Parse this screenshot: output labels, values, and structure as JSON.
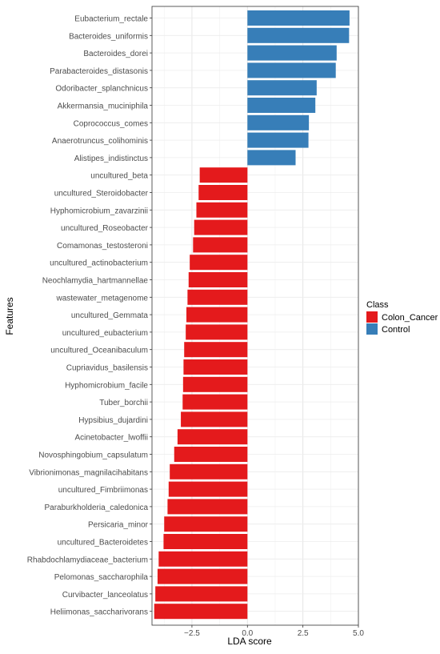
{
  "chart_data": {
    "type": "bar",
    "orientation": "horizontal",
    "xlabel": "LDA score",
    "ylabel": "Features",
    "xlim": [
      -4.3,
      5.0
    ],
    "xticks": [
      -2.5,
      0.0,
      2.5,
      5.0
    ],
    "xtick_labels": [
      "−2.5",
      "0.0",
      "2.5",
      "5.0"
    ],
    "grid": true,
    "legend": {
      "title": "Class",
      "placement": "right",
      "entries": [
        {
          "label": "Colon_Cancer",
          "color": "#e41a1c"
        },
        {
          "label": "Control",
          "color": "#377eb8"
        }
      ]
    },
    "bars": [
      {
        "feature": "Eubacterium_rectale",
        "value": 4.6,
        "class": "Control"
      },
      {
        "feature": "Bacteroides_uniformis",
        "value": 4.58,
        "class": "Control"
      },
      {
        "feature": "Bacteroides_dorei",
        "value": 4.02,
        "class": "Control"
      },
      {
        "feature": "Parabacteroides_distasonis",
        "value": 3.98,
        "class": "Control"
      },
      {
        "feature": "Odoribacter_splanchnicus",
        "value": 3.12,
        "class": "Control"
      },
      {
        "feature": "Akkermansia_muciniphila",
        "value": 3.06,
        "class": "Control"
      },
      {
        "feature": "Coprococcus_comes",
        "value": 2.77,
        "class": "Control"
      },
      {
        "feature": "Anaerotruncus_colihominis",
        "value": 2.75,
        "class": "Control"
      },
      {
        "feature": "Alistipes_indistinctus",
        "value": 2.17,
        "class": "Control"
      },
      {
        "feature": "uncultured_beta",
        "value": -2.15,
        "class": "Colon_Cancer"
      },
      {
        "feature": "uncultured_Steroidobacter",
        "value": -2.2,
        "class": "Colon_Cancer"
      },
      {
        "feature": "Hyphomicrobium_zavarzinii",
        "value": -2.3,
        "class": "Colon_Cancer"
      },
      {
        "feature": "uncultured_Roseobacter",
        "value": -2.4,
        "class": "Colon_Cancer"
      },
      {
        "feature": "Comamonas_testosteroni",
        "value": -2.45,
        "class": "Colon_Cancer"
      },
      {
        "feature": "uncultured_actinobacterium",
        "value": -2.6,
        "class": "Colon_Cancer"
      },
      {
        "feature": "Neochlamydia_hartmannellae",
        "value": -2.65,
        "class": "Colon_Cancer"
      },
      {
        "feature": "wastewater_metagenome",
        "value": -2.7,
        "class": "Colon_Cancer"
      },
      {
        "feature": "uncultured_Gemmata",
        "value": -2.75,
        "class": "Colon_Cancer"
      },
      {
        "feature": "uncultured_eubacterium",
        "value": -2.78,
        "class": "Colon_Cancer"
      },
      {
        "feature": "uncultured_Oceanibaculum",
        "value": -2.85,
        "class": "Colon_Cancer"
      },
      {
        "feature": "Cupriavidus_basilensis",
        "value": -2.88,
        "class": "Colon_Cancer"
      },
      {
        "feature": "Hyphomicrobium_facile",
        "value": -2.9,
        "class": "Colon_Cancer"
      },
      {
        "feature": "Tuber_borchii",
        "value": -2.92,
        "class": "Colon_Cancer"
      },
      {
        "feature": "Hypsibius_dujardini",
        "value": -3.0,
        "class": "Colon_Cancer"
      },
      {
        "feature": "Acinetobacter_lwoffii",
        "value": -3.15,
        "class": "Colon_Cancer"
      },
      {
        "feature": "Novosphingobium_capsulatum",
        "value": -3.3,
        "class": "Colon_Cancer"
      },
      {
        "feature": "Vibrionimonas_magnilacihabitans",
        "value": -3.5,
        "class": "Colon_Cancer"
      },
      {
        "feature": "uncultured_Fimbriimonas",
        "value": -3.55,
        "class": "Colon_Cancer"
      },
      {
        "feature": "Paraburkholderia_caledonica",
        "value": -3.6,
        "class": "Colon_Cancer"
      },
      {
        "feature": "Persicaria_minor",
        "value": -3.75,
        "class": "Colon_Cancer"
      },
      {
        "feature": "uncultured_Bacteroidetes",
        "value": -3.78,
        "class": "Colon_Cancer"
      },
      {
        "feature": "Rhabdochlamydiaceae_bacterium",
        "value": -4.0,
        "class": "Colon_Cancer"
      },
      {
        "feature": "Pelomonas_saccharophila",
        "value": -4.05,
        "class": "Colon_Cancer"
      },
      {
        "feature": "Curvibacter_lanceolatus",
        "value": -4.15,
        "class": "Colon_Cancer"
      },
      {
        "feature": "Heliimonas_saccharivorans",
        "value": -4.2,
        "class": "Colon_Cancer"
      }
    ]
  }
}
